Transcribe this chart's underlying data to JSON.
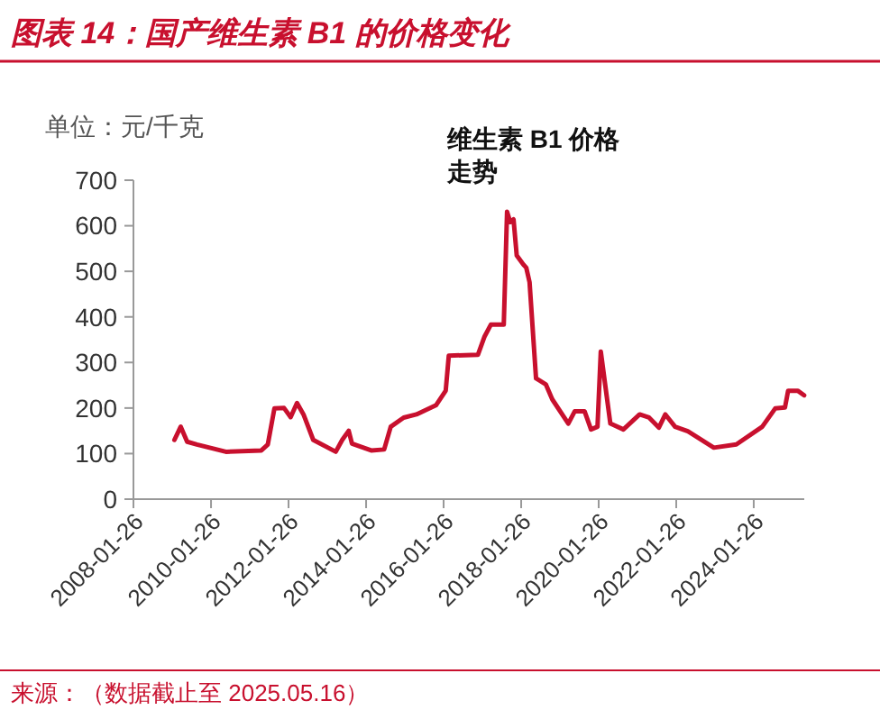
{
  "chart_data": {
    "type": "line",
    "title": "图表 14：国产维生素 B1 的价格变化",
    "ylabel": "单位：元/千克",
    "annotations": [
      "维生素  B1  价格",
      "走势",
      "来源：（数据截止至 2025.05.16）"
    ],
    "x": [
      "2009-02",
      "2009-04",
      "2009-06",
      "2009-09",
      "2010-06",
      "2011-05",
      "2011-07",
      "2011-09",
      "2011-12",
      "2012-02",
      "2012-04",
      "2012-06",
      "2012-09",
      "2013-04",
      "2013-06",
      "2013-08",
      "2013-09",
      "2014-03",
      "2014-07",
      "2014-09",
      "2015-01",
      "2015-05",
      "2015-11",
      "2016-02",
      "2016-03",
      "2016-12",
      "2017-02",
      "2017-04",
      "2017-08",
      "2017-09",
      "2017-10",
      "2017-11",
      "2017-12",
      "2018-02",
      "2018-03",
      "2018-04",
      "2018-06",
      "2018-09",
      "2018-11",
      "2019-04",
      "2019-06",
      "2019-09",
      "2019-11",
      "2020-01",
      "2020-02",
      "2020-05",
      "2020-09",
      "2021-02",
      "2021-05",
      "2021-08",
      "2021-10",
      "2022-01",
      "2022-05",
      "2023-01",
      "2023-08",
      "2024-04",
      "2024-08",
      "2024-11",
      "2024-12",
      "2025-03",
      "2025-05"
    ],
    "series": [
      {
        "color": "#c8102e",
        "values": [
          130,
          159,
          126,
          120,
          104,
          107,
          120,
          199,
          200,
          180,
          211,
          186,
          130,
          104,
          130,
          150,
          122,
          107,
          109,
          159,
          179,
          186,
          206,
          238,
          315,
          317,
          357,
          383,
          383,
          631,
          608,
          614,
          535,
          515,
          508,
          476,
          265,
          252,
          219,
          166,
          193,
          193,
          153,
          159,
          324,
          166,
          153,
          186,
          179,
          157,
          186,
          159,
          149,
          113,
          120,
          159,
          199,
          201,
          238,
          238,
          228
        ]
      }
    ],
    "xlim": [
      "2008-01-26",
      "2025-05-16"
    ],
    "xticks": [
      {
        "value": "2008-01-26",
        "label": "2008-01-26"
      },
      {
        "value": "2010-01-26",
        "label": "2010-01-26"
      },
      {
        "value": "2012-01-26",
        "label": "2012-01-26"
      },
      {
        "value": "2014-01-26",
        "label": "2014-01-26"
      },
      {
        "value": "2016-01-26",
        "label": "2016-01-26"
      },
      {
        "value": "2018-01-26",
        "label": "2018-01-26"
      },
      {
        "value": "2020-01-26",
        "label": "2020-01-26"
      },
      {
        "value": "2022-01-26",
        "label": "2022-01-26"
      },
      {
        "value": "2024-01-26",
        "label": "2024-01-26"
      }
    ],
    "ylim": [
      0,
      700
    ],
    "yticks": [
      0,
      100,
      200,
      300,
      400,
      500,
      600,
      700
    ],
    "grid": false,
    "marker": "none",
    "line_style": "solid"
  }
}
